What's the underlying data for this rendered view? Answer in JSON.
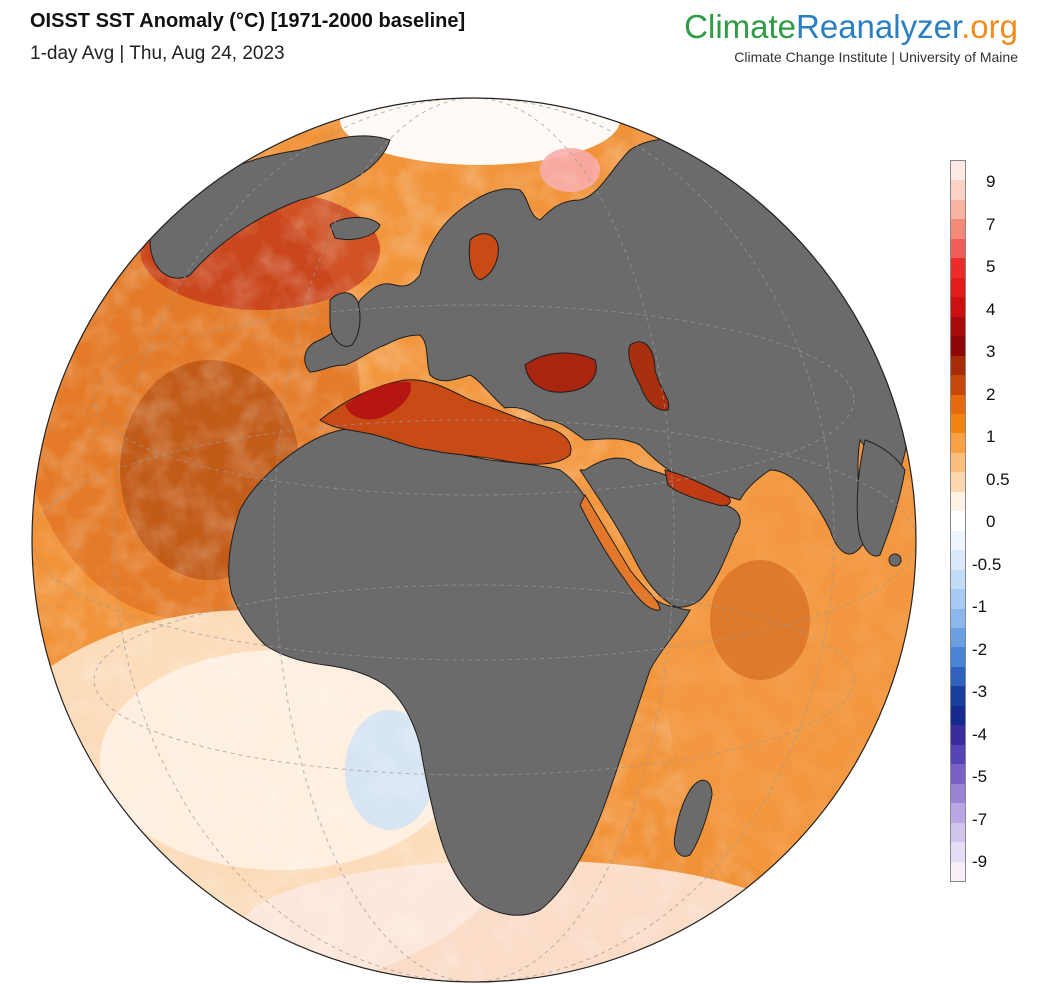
{
  "header": {
    "title": "OISST SST Anomaly (°C) [1971-2000 baseline]",
    "subtitle": "1-day Avg | Thu, Aug 24, 2023"
  },
  "brand": {
    "part1": "Climate",
    "part2": "Reanalyzer",
    "part3": ".org",
    "tagline": "Climate Change Institute | University of Maine",
    "colors": {
      "part1": "#2e9b45",
      "part2": "#2a7fc1",
      "part3": "#f28c1c"
    }
  },
  "map": {
    "projection": "orthographic",
    "land_color": "#6b6b6b",
    "ocean_base_color": "#f59a3f",
    "regions": [
      "North Atlantic",
      "Mediterranean Sea",
      "Black Sea",
      "Caspian Sea",
      "Red Sea",
      "Persian Gulf",
      "Arabian Sea",
      "Indian Ocean",
      "South Atlantic",
      "Southern Ocean"
    ]
  },
  "colorbar": {
    "labels": [
      "9",
      "7",
      "5",
      "4",
      "3",
      "2",
      "1",
      "0.5",
      "0",
      "-0.5",
      "-1",
      "-2",
      "-3",
      "-4",
      "-5",
      "-7",
      "-9"
    ],
    "colors": [
      "#fde9e4",
      "#fbd2c4",
      "#f8b4a3",
      "#f68a7a",
      "#f25d57",
      "#ee2b2b",
      "#e41b1b",
      "#cc0f0f",
      "#a90a0a",
      "#8d0707",
      "#a52c07",
      "#c54709",
      "#e46a0b",
      "#f2840f",
      "#f7a144",
      "#fbbe7c",
      "#fdd7b0",
      "#fff3e7",
      "#ffffff",
      "#f0f6ff",
      "#dbe9fb",
      "#c3dcf8",
      "#a7cbf2",
      "#8cb7ec",
      "#6a9fe2",
      "#4a83d6",
      "#2f61bd",
      "#1a3fa0",
      "#152a8f",
      "#3a2b9e",
      "#5743b4",
      "#7a61c7",
      "#9b84d6",
      "#b9a7e4",
      "#d1c4ee",
      "#e5dcf5",
      "#f7eef7"
    ]
  }
}
